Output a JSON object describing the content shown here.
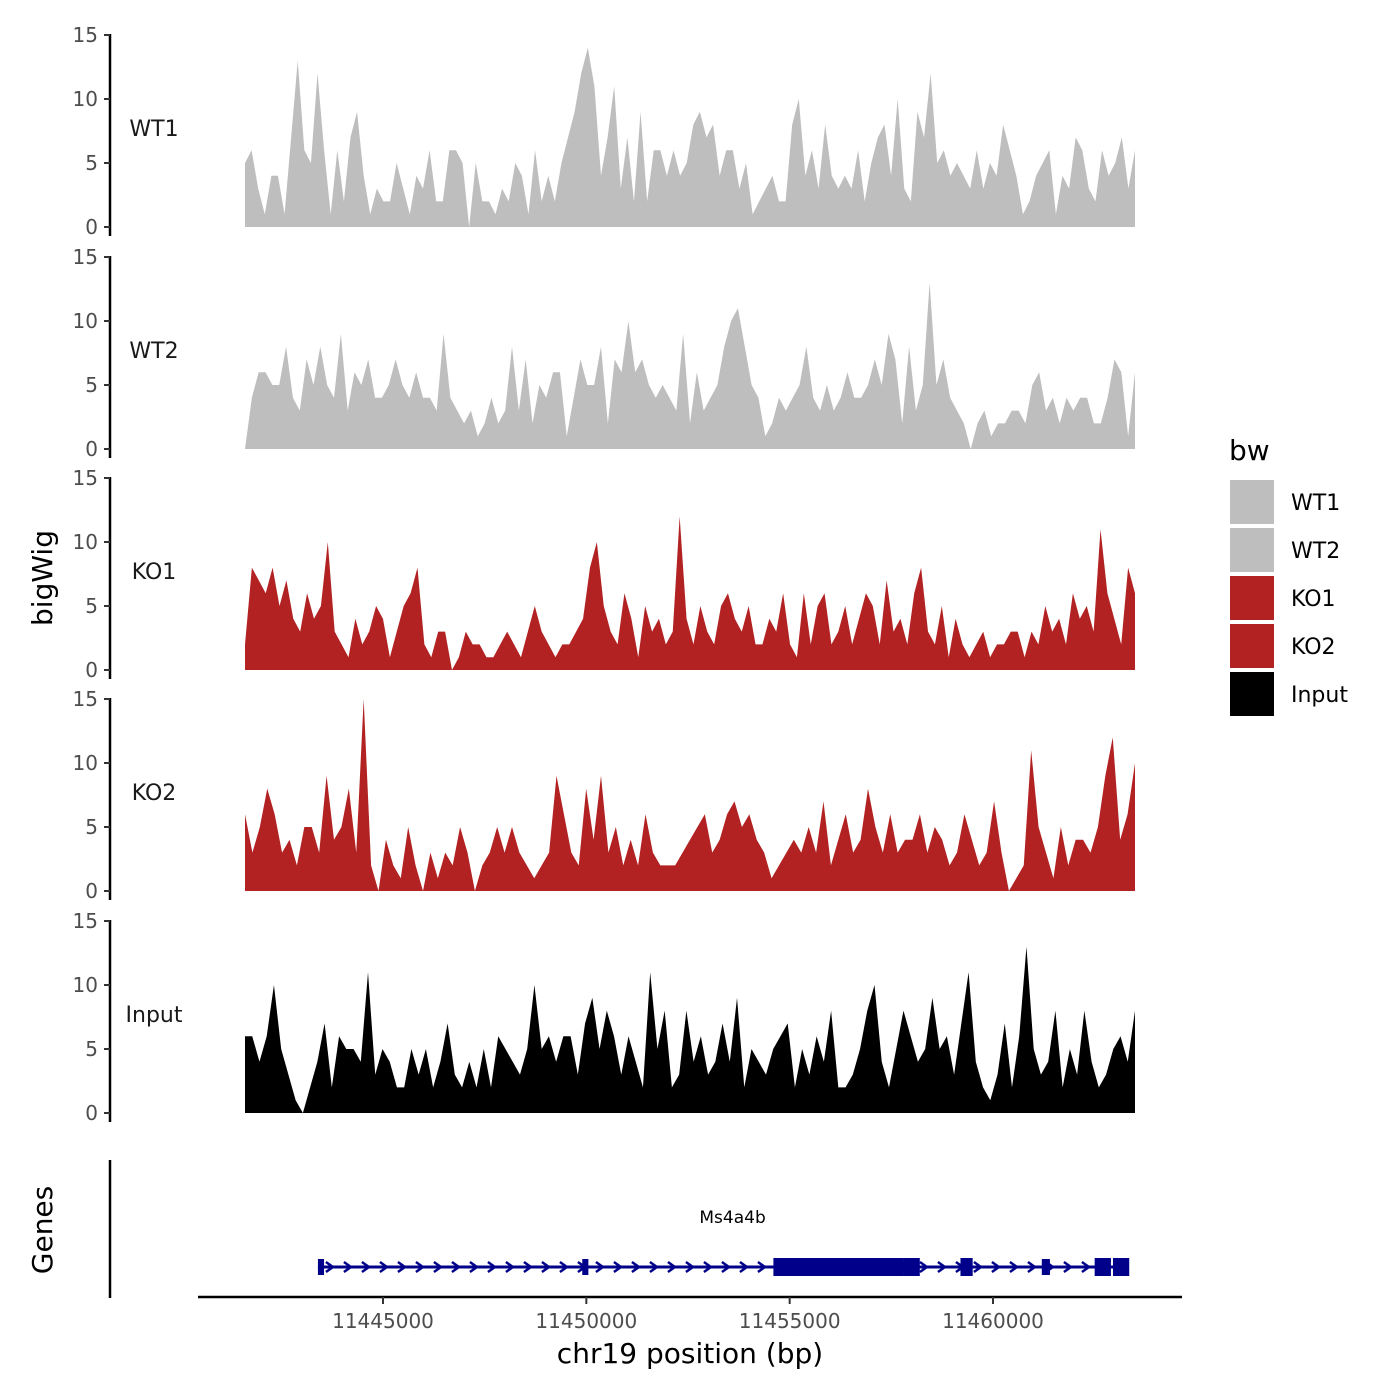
{
  "chart_data": {
    "type": "area",
    "x_range": [
      11441500,
      11463500
    ],
    "x_ticks": [
      11445000,
      11450000,
      11455000,
      11460000
    ],
    "x_tick_labels": [
      "11445000",
      "11450000",
      "11455000",
      "11460000"
    ],
    "xlabel": "chr19 position (bp)",
    "ylabel": "bigWig",
    "ylim": [
      0,
      15
    ],
    "y_ticks": [
      0,
      5,
      10,
      15
    ],
    "y_tick_labels": [
      "0",
      "5",
      "10",
      "15"
    ],
    "legend": {
      "title": "bw",
      "position": "right",
      "entries": [
        {
          "label": "WT1",
          "color": "#bebebe"
        },
        {
          "label": "WT2",
          "color": "#bebebe"
        },
        {
          "label": "KO1",
          "color": "#b22222"
        },
        {
          "label": "KO2",
          "color": "#b22222"
        },
        {
          "label": "Input",
          "color": "#000000"
        }
      ]
    },
    "series": [
      {
        "name": "WT1",
        "color": "#bebebe",
        "values": [
          5,
          6,
          3,
          1,
          4,
          4,
          1,
          7,
          13,
          6,
          5,
          12,
          6,
          1,
          6,
          2,
          7,
          9,
          4,
          1,
          3,
          2,
          2,
          5,
          3,
          1,
          4,
          3,
          6,
          2,
          2,
          6,
          6,
          5,
          0,
          5,
          2,
          2,
          1,
          3,
          2,
          5,
          4,
          1,
          6,
          2,
          4,
          2,
          5,
          7,
          9,
          12,
          14,
          11,
          4,
          7,
          11,
          3,
          7,
          2,
          9,
          2,
          6,
          6,
          4,
          6,
          4,
          5,
          8,
          9,
          7,
          8,
          4,
          6,
          6,
          3,
          5,
          1,
          2,
          3,
          4,
          2,
          2,
          8,
          10,
          4,
          6,
          3,
          8,
          4,
          3,
          4,
          3,
          6,
          2,
          5,
          7,
          8,
          4,
          10,
          3,
          2,
          9,
          7,
          12,
          5,
          6,
          4,
          5,
          4,
          3,
          6,
          3,
          5,
          4,
          8,
          6,
          4,
          1,
          2,
          4,
          5,
          6,
          1,
          4,
          3,
          7,
          6,
          3,
          2,
          6,
          4,
          5,
          7,
          3,
          6
        ]
      },
      {
        "name": "WT2",
        "color": "#bebebe",
        "values": [
          0,
          4,
          6,
          6,
          5,
          5,
          8,
          4,
          3,
          7,
          5,
          8,
          5,
          4,
          9,
          3,
          6,
          5,
          7,
          4,
          4,
          5,
          7,
          5,
          4,
          6,
          4,
          4,
          3,
          9,
          4,
          3,
          2,
          3,
          1,
          2,
          4,
          2,
          3,
          8,
          3,
          7,
          2,
          5,
          4,
          6,
          6,
          1,
          4,
          7,
          5,
          5,
          8,
          2,
          7,
          6,
          10,
          6,
          7,
          5,
          4,
          5,
          4,
          3,
          9,
          2,
          6,
          3,
          4,
          5,
          8,
          10,
          11,
          8,
          5,
          4,
          1,
          2,
          4,
          3,
          4,
          5,
          8,
          4,
          3,
          5,
          3,
          4,
          6,
          4,
          4,
          5,
          7,
          5,
          9,
          7,
          2,
          8,
          3,
          5,
          13,
          5,
          7,
          4,
          3,
          2,
          0,
          2,
          3,
          1,
          2,
          2,
          3,
          3,
          2,
          5,
          6,
          3,
          4,
          2,
          4,
          3,
          4,
          4,
          2,
          2,
          4,
          7,
          6,
          1,
          6
        ]
      },
      {
        "name": "KO1",
        "color": "#b22222",
        "values": [
          2,
          8,
          7,
          6,
          8,
          5,
          7,
          4,
          3,
          6,
          4,
          5,
          10,
          3,
          2,
          1,
          4,
          2,
          3,
          5,
          4,
          1,
          3,
          5,
          6,
          8,
          2,
          1,
          3,
          3,
          0,
          1,
          3,
          2,
          2,
          1,
          1,
          2,
          3,
          2,
          1,
          3,
          5,
          3,
          2,
          1,
          2,
          2,
          3,
          4,
          8,
          10,
          5,
          3,
          2,
          6,
          4,
          1,
          5,
          3,
          4,
          2,
          3,
          12,
          4,
          2,
          5,
          3,
          2,
          5,
          6,
          4,
          3,
          5,
          2,
          2,
          4,
          3,
          6,
          2,
          1,
          6,
          2,
          5,
          6,
          2,
          3,
          5,
          2,
          4,
          6,
          5,
          2,
          7,
          3,
          4,
          2,
          6,
          8,
          3,
          2,
          5,
          1,
          4,
          2,
          1,
          2,
          3,
          1,
          2,
          2,
          3,
          3,
          1,
          3,
          2,
          5,
          3,
          4,
          2,
          6,
          4,
          5,
          3,
          11,
          6,
          4,
          2,
          8,
          6
        ]
      },
      {
        "name": "KO2",
        "color": "#b22222",
        "values": [
          6,
          3,
          5,
          8,
          6,
          3,
          4,
          2,
          5,
          5,
          3,
          9,
          4,
          5,
          8,
          3,
          15,
          2,
          0,
          4,
          2,
          1,
          5,
          2,
          0,
          3,
          1,
          3,
          2,
          5,
          3,
          0,
          2,
          3,
          5,
          3,
          5,
          3,
          2,
          1,
          2,
          3,
          9,
          6,
          3,
          2,
          8,
          4,
          9,
          3,
          5,
          2,
          4,
          2,
          6,
          3,
          2,
          2,
          2,
          3,
          4,
          5,
          6,
          3,
          4,
          6,
          7,
          5,
          6,
          4,
          3,
          1,
          2,
          3,
          4,
          3,
          5,
          3,
          7,
          2,
          4,
          6,
          3,
          4,
          8,
          5,
          3,
          6,
          3,
          4,
          4,
          6,
          3,
          5,
          4,
          2,
          3,
          6,
          4,
          2,
          3,
          7,
          3,
          0,
          1,
          2,
          11,
          5,
          3,
          1,
          5,
          2,
          4,
          4,
          3,
          5,
          9,
          12,
          4,
          6,
          10
        ]
      },
      {
        "name": "Input",
        "color": "#000000",
        "values": [
          6,
          6,
          4,
          6,
          10,
          5,
          3,
          1,
          0,
          2,
          4,
          7,
          2,
          6,
          5,
          5,
          4,
          11,
          3,
          5,
          4,
          2,
          2,
          5,
          3,
          5,
          2,
          4,
          7,
          3,
          2,
          4,
          2,
          5,
          2,
          6,
          5,
          4,
          3,
          5,
          10,
          5,
          6,
          4,
          6,
          6,
          3,
          7,
          9,
          5,
          8,
          6,
          3,
          6,
          4,
          2,
          11,
          5,
          8,
          2,
          3,
          8,
          4,
          6,
          3,
          4,
          7,
          4,
          9,
          2,
          5,
          4,
          3,
          5,
          6,
          7,
          2,
          5,
          3,
          6,
          4,
          8,
          2,
          2,
          3,
          5,
          8,
          10,
          4,
          2,
          5,
          8,
          6,
          4,
          5,
          9,
          5,
          6,
          3,
          7,
          11,
          4,
          2,
          1,
          3,
          7,
          2,
          6,
          13,
          5,
          3,
          4,
          8,
          2,
          5,
          3,
          8,
          4,
          2,
          3,
          5,
          6,
          4,
          8
        ]
      }
    ],
    "genes_track": {
      "label": "Genes",
      "genes": [
        {
          "name": "Ms4a4b",
          "start": 11443400,
          "end": 11463300,
          "strand": "+",
          "exons": [
            [
              11443400,
              11443550
            ],
            [
              11449900,
              11450050
            ],
            [
              11454600,
              11457800
            ],
            [
              11457800,
              11458200
            ],
            [
              11459200,
              11459500
            ],
            [
              11461200,
              11461400
            ],
            [
              11462500,
              11462900
            ],
            [
              11462950,
              11463350
            ]
          ]
        }
      ]
    }
  }
}
